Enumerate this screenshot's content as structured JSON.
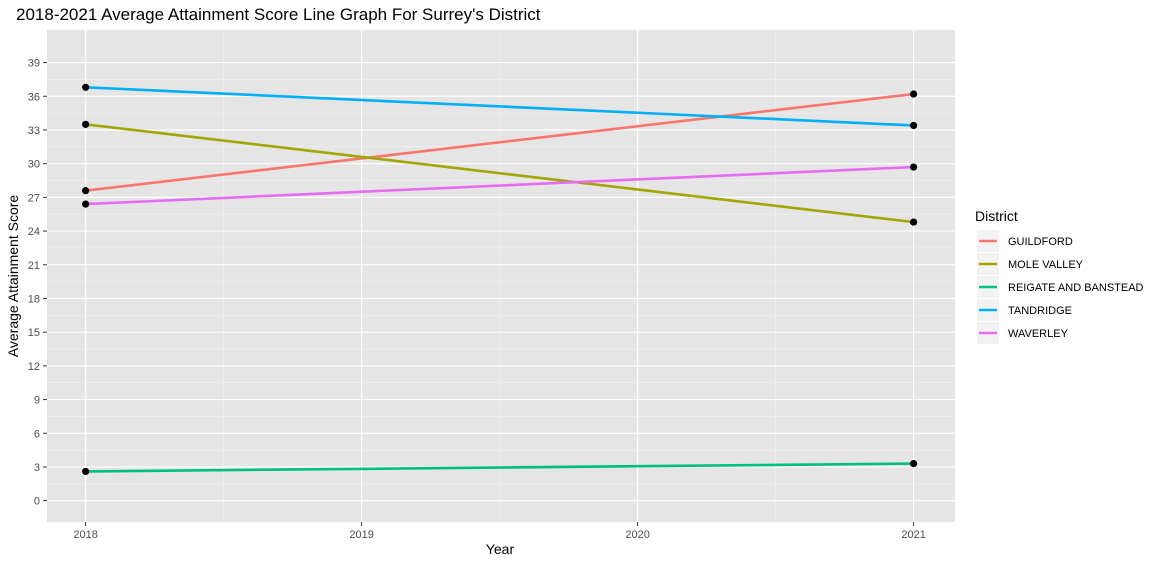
{
  "chart_data": {
    "type": "line",
    "title": "2018-2021 Average Attainment Score Line Graph For Surrey's District",
    "xlabel": "Year",
    "ylabel": "Average Attainment Score",
    "x_ticks": [
      "2018",
      "2019",
      "2020",
      "2021"
    ],
    "y_ticks": [
      0,
      3,
      6,
      9,
      12,
      15,
      18,
      21,
      24,
      27,
      30,
      33,
      36,
      39
    ],
    "xlim": [
      2017.86,
      2021.15
    ],
    "ylim": [
      -1.9,
      41.9
    ],
    "grid": true,
    "background": "#e5e5e5",
    "legend": {
      "title": "District",
      "position": "right"
    },
    "series": [
      {
        "name": "GUILDFORD",
        "color": "#f8766d",
        "x": [
          2018,
          2021
        ],
        "y": [
          27.6,
          36.2
        ]
      },
      {
        "name": "MOLE VALLEY",
        "color": "#a3a500",
        "x": [
          2018,
          2021
        ],
        "y": [
          33.5,
          24.8
        ]
      },
      {
        "name": "REIGATE AND BANSTEAD",
        "color": "#00bf7d",
        "x": [
          2018,
          2021
        ],
        "y": [
          2.6,
          3.3
        ]
      },
      {
        "name": "TANDRIDGE",
        "color": "#00b0f6",
        "x": [
          2018,
          2021
        ],
        "y": [
          36.8,
          33.4
        ]
      },
      {
        "name": "WAVERLEY",
        "color": "#e76bf3",
        "x": [
          2018,
          2021
        ],
        "y": [
          26.4,
          29.7
        ]
      }
    ]
  }
}
